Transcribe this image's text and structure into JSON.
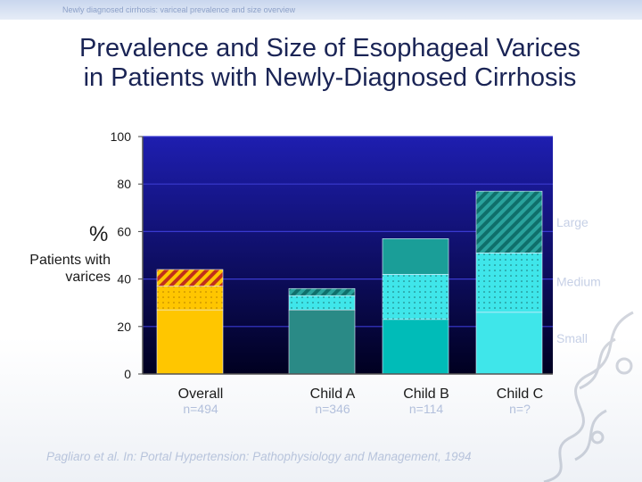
{
  "header": {
    "faint_text": "Newly diagnosed cirrhosis: variceal prevalence and size overview"
  },
  "slide": {
    "title_line1": "Prevalence and Size of Esophageal Varices",
    "title_line2": "in Patients with Newly-Diagnosed Cirrhosis",
    "citation": "Pagliaro et al. In: Portal Hypertension: Pathophysiology and Management, 1994"
  },
  "chart_data": {
    "type": "bar",
    "stacked": true,
    "title": "Prevalence and Size of Esophageal Varices in Patients with Newly-Diagnosed Cirrhosis",
    "ylabel_symbol": "%",
    "ylabel": "Patients with varices",
    "ylim": [
      0,
      100
    ],
    "yticks": [
      0,
      20,
      40,
      60,
      80,
      100
    ],
    "categories": [
      "Overall",
      "Child A",
      "Child B",
      "Child C"
    ],
    "sample_sizes": [
      "n=494",
      "n=346",
      "n=114",
      "n=?"
    ],
    "series": [
      {
        "name": "Small",
        "values": [
          27,
          27,
          23,
          26
        ]
      },
      {
        "name": "Medium",
        "values": [
          10,
          6,
          19,
          25
        ]
      },
      {
        "name": "Large",
        "values": [
          7,
          3,
          15,
          26
        ]
      }
    ],
    "legend": [
      "Large",
      "Medium",
      "Small"
    ],
    "colors": {
      "overall": [
        "#ffc600",
        "#ffc600",
        "#ffc600"
      ],
      "overall_large_stripe": "#c0301c",
      "child_a": [
        "#2a8a86",
        "#3fe6ea",
        "#2a8a86"
      ],
      "child_b": [
        "#00bcb8",
        "#3fe6ea",
        "#1a9e98"
      ],
      "child_c": [
        "#3fe6ea",
        "#3fe6ea",
        "#1fb0a8"
      ],
      "plot_bg_top": "#1c1ca8",
      "plot_bg_bottom": "#000018"
    }
  }
}
